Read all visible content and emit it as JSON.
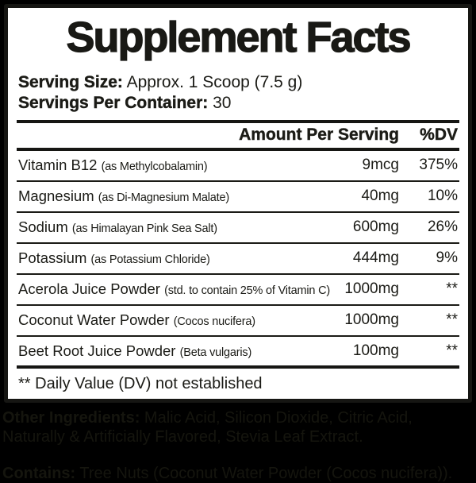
{
  "title": "Supplement Facts",
  "serving": {
    "size_label": "Serving Size:",
    "size_value": " Approx. 1 Scoop (7.5 g)",
    "container_label": "Servings Per Container:",
    "container_value": " 30"
  },
  "table": {
    "amount_header": "Amount Per Serving",
    "dv_header": "%DV",
    "rows": [
      {
        "name": "Vitamin B12 ",
        "detail": "(as Methylcobalamin)",
        "amount": "9mcg",
        "dv": "375%"
      },
      {
        "name": "Magnesium ",
        "detail": "(as Di-Magnesium Malate)",
        "amount": "40mg",
        "dv": "10%"
      },
      {
        "name": "Sodium ",
        "detail": "(as Himalayan Pink Sea Salt)",
        "amount": "600mg",
        "dv": "26%"
      },
      {
        "name": "Potassium ",
        "detail": "(as Potassium Chloride)",
        "amount": "444mg",
        "dv": "9%"
      },
      {
        "name": "Acerola Juice Powder ",
        "detail": "(std. to contain 25% of Vitamin C)",
        "amount": "1000mg",
        "dv": "**"
      },
      {
        "name": "Coconut Water Powder ",
        "detail": "(Cocos nucifera)",
        "amount": "1000mg",
        "dv": "**"
      },
      {
        "name": "Beet Root Juice Powder ",
        "detail": "(Beta vulgaris)",
        "amount": "100mg",
        "dv": "**"
      }
    ],
    "footnote": "** Daily Value (DV) not established"
  },
  "bottom": {
    "other_label": "Other Ingredients:",
    "other_value": " Malic Acid, Silicon Dioxide, Citric Acid, Naturally & Artificially Flavored, Stevia Leaf Extract.",
    "contains_label": "Contains:",
    "contains_value": " Tree Nuts (Coconut Water Powder (Cocos nucifera))."
  },
  "colors": {
    "panel_bg": "#ffffff",
    "ink": "#1b1b16",
    "border": "#161613",
    "bottom_bg": "#000000",
    "bottom_ink": "#15150e"
  }
}
